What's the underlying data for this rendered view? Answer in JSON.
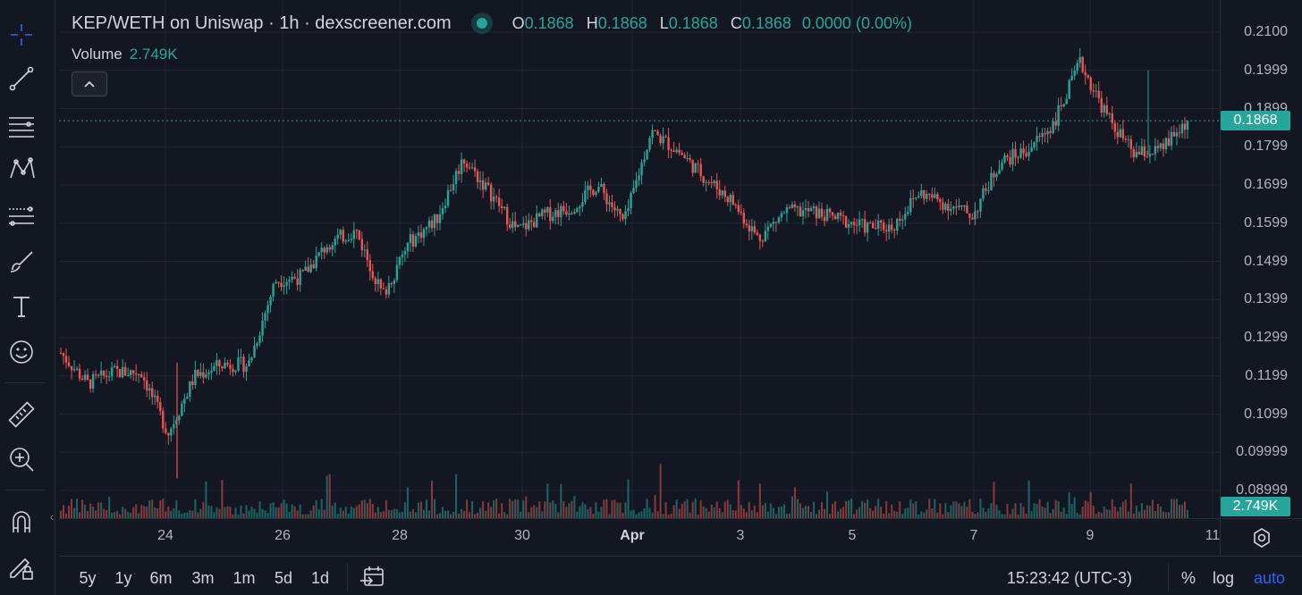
{
  "legend": {
    "title": "KEP/WETH on Uniswap · 1h · dexscreener.com",
    "ohlc": [
      {
        "k": "O",
        "v": "0.1868"
      },
      {
        "k": "H",
        "v": "0.1868"
      },
      {
        "k": "L",
        "v": "0.1868"
      },
      {
        "k": "C",
        "v": "0.1868"
      }
    ],
    "change": "0.0000 (0.00%)",
    "volume_label": "Volume",
    "volume_value": "2.749K",
    "collapse_icon": "chevron-up-icon"
  },
  "price_axis": {
    "labels": [
      "0.2100",
      "0.1999",
      "0.1899",
      "0.1799",
      "0.1699",
      "0.1599",
      "0.1499",
      "0.1399",
      "0.1299",
      "0.1199",
      "0.1099",
      "0.09999",
      "0.08999"
    ],
    "current_price": "0.1868",
    "current_volume": "2.749K"
  },
  "time_axis": {
    "labels": [
      "24",
      "26",
      "28",
      "30",
      "Apr",
      "3",
      "5",
      "7",
      "9",
      "11"
    ],
    "bold_label": "Apr"
  },
  "toolbar": {
    "tools": [
      "crosshair-icon",
      "trend-line-icon",
      "horizontal-lines-icon",
      "pattern-icon",
      "fib-retracement-icon",
      "brush-icon",
      "text-icon",
      "emoji-icon",
      "ruler-icon",
      "zoom-in-icon",
      "magnet-icon",
      "lock-drawings-icon"
    ]
  },
  "bottom_bar": {
    "ranges": [
      "5y",
      "1y",
      "6m",
      "3m",
      "1m",
      "5d",
      "1d"
    ],
    "clock": "15:23:42 (UTC-3)",
    "percent_label": "%",
    "log_label": "log",
    "auto_label": "auto"
  },
  "colors": {
    "up": "#26a69a",
    "down": "#ef5350",
    "background": "#131722",
    "accent": "#2962ff"
  },
  "chart_data": {
    "type": "candlestick",
    "pair": "KEP/WETH",
    "interval": "1h",
    "ylim": [
      0.085,
      0.213
    ],
    "x_range": [
      "Mar 22",
      "Apr 11"
    ],
    "close_path": [
      {
        "t": "Mar 22",
        "p": 0.126
      },
      {
        "t": "Mar 22 12h",
        "p": 0.118
      },
      {
        "t": "Mar 23",
        "p": 0.121
      },
      {
        "t": "Mar 24",
        "p": 0.121
      },
      {
        "t": "Mar 24 06h",
        "p": 0.105
      },
      {
        "t": "Mar 24 18h",
        "p": 0.12
      },
      {
        "t": "Mar 25",
        "p": 0.123
      },
      {
        "t": "Mar 25 18h",
        "p": 0.123
      },
      {
        "t": "Mar 26",
        "p": 0.145
      },
      {
        "t": "Mar 26 12h",
        "p": 0.146
      },
      {
        "t": "Mar 27",
        "p": 0.155
      },
      {
        "t": "Mar 27 12h",
        "p": 0.158
      },
      {
        "t": "Mar 27 18h",
        "p": 0.141
      },
      {
        "t": "Mar 28",
        "p": 0.155
      },
      {
        "t": "Mar 28 12h",
        "p": 0.161
      },
      {
        "t": "Mar 28 18h",
        "p": 0.177
      },
      {
        "t": "Mar 29",
        "p": 0.168
      },
      {
        "t": "Mar 29 12h",
        "p": 0.158
      },
      {
        "t": "Mar 30",
        "p": 0.162
      },
      {
        "t": "Mar 30 12h",
        "p": 0.164
      },
      {
        "t": "Mar 31",
        "p": 0.17
      },
      {
        "t": "Mar 31 12h",
        "p": 0.16
      },
      {
        "t": "Apr 1",
        "p": 0.184
      },
      {
        "t": "Apr 1 12h",
        "p": 0.179
      },
      {
        "t": "Apr 2",
        "p": 0.172
      },
      {
        "t": "Apr 2 12h",
        "p": 0.166
      },
      {
        "t": "Apr 3",
        "p": 0.156
      },
      {
        "t": "Apr 3 12h",
        "p": 0.163
      },
      {
        "t": "Apr 4",
        "p": 0.163
      },
      {
        "t": "Apr 4 12h",
        "p": 0.161
      },
      {
        "t": "Apr 5",
        "p": 0.159
      },
      {
        "t": "Apr 5 12h",
        "p": 0.159
      },
      {
        "t": "Apr 6",
        "p": 0.168
      },
      {
        "t": "Apr 6 12h",
        "p": 0.165
      },
      {
        "t": "Apr 7",
        "p": 0.162
      },
      {
        "t": "Apr 7 12h",
        "p": 0.176
      },
      {
        "t": "Apr 8",
        "p": 0.179
      },
      {
        "t": "Apr 8 12h",
        "p": 0.186
      },
      {
        "t": "Apr 9",
        "p": 0.202
      },
      {
        "t": "Apr 9 12h",
        "p": 0.188
      },
      {
        "t": "Apr 10",
        "p": 0.178
      },
      {
        "t": "Apr 10 12h",
        "p": 0.179
      },
      {
        "t": "Apr 11",
        "p": 0.1868
      }
    ],
    "last_close": 0.1868,
    "last_volume": "2.749K"
  }
}
